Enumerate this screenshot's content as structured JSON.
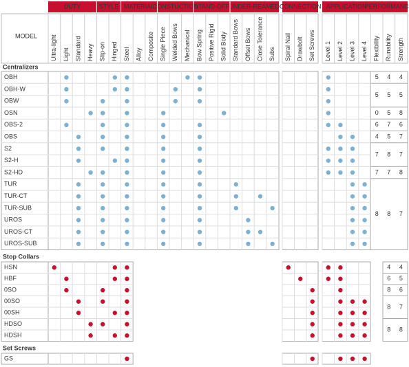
{
  "header": {
    "model_label": "MODEL"
  },
  "column_blocks": [
    {
      "groups": [
        {
          "name": "DUTY",
          "columns": [
            "Ultra-light",
            "Light",
            "Standard",
            "Heavy"
          ]
        },
        {
          "name": "STYLE",
          "columns": [
            "Slip-on",
            "Hinged"
          ]
        },
        {
          "name": "MATERIAL",
          "columns": [
            "Steel",
            "Alloy",
            "Composite"
          ]
        },
        {
          "name": "CONSTUCTION",
          "columns": [
            "Single Piece",
            "Welded Bows",
            "Mechanical"
          ]
        },
        {
          "name": "STAND-OFF",
          "columns": [
            "Bow Spring",
            "Positive Rigid",
            "Solid Body"
          ]
        },
        {
          "name": "UNDER-REAMED",
          "columns": [
            "Standard Bows",
            "Offset Bows",
            "Close Tolerance",
            "Subs"
          ]
        }
      ]
    },
    {
      "groups": [
        {
          "name": "CONNECTION",
          "columns": [
            "Spiral Nail",
            "Drawbolt",
            "Set Screws"
          ]
        }
      ]
    },
    {
      "groups": [
        {
          "name": "APPLICATION",
          "columns": [
            "Level 1",
            "Level 2",
            "Level 3",
            "Level 4"
          ]
        },
        {
          "name": "PERFORMANCE",
          "columns": [
            "Flexibility",
            "Runability",
            "Strength"
          ]
        }
      ]
    }
  ],
  "sections": [
    {
      "title": "Centralizers",
      "dot_color": "#7fb0d0",
      "rows": [
        {
          "model": "OBH",
          "features": [
            "Light",
            "Hinged",
            "Steel",
            "Mechanical",
            "Bow Spring",
            "Level 1"
          ]
        },
        {
          "model": "OBH-W",
          "features": [
            "Light",
            "Hinged",
            "Steel",
            "Welded Bows",
            "Bow Spring",
            "Level 1"
          ]
        },
        {
          "model": "OBW",
          "features": [
            "Light",
            "Slip-on",
            "Steel",
            "Welded Bows",
            "Bow Spring",
            "Level 1"
          ]
        },
        {
          "model": "OSN",
          "features": [
            "Heavy",
            "Slip-on",
            "Steel",
            "Single Piece",
            "Solid Body",
            "Level 1"
          ]
        },
        {
          "model": "OBS-2",
          "features": [
            "Light",
            "Slip-on",
            "Steel",
            "Single Piece",
            "Bow Spring",
            "Level 1",
            "Level 2"
          ]
        },
        {
          "model": "OBS",
          "features": [
            "Standard",
            "Slip-on",
            "Steel",
            "Single Piece",
            "Bow Spring",
            "Level 2",
            "Level 3"
          ]
        },
        {
          "model": "S2",
          "features": [
            "Standard",
            "Slip-on",
            "Steel",
            "Single Piece",
            "Bow Spring",
            "Level 1",
            "Level 2",
            "Level 3"
          ]
        },
        {
          "model": "S2-H",
          "features": [
            "Standard",
            "Hinged",
            "Steel",
            "Single Piece",
            "Bow Spring",
            "Level 1",
            "Level 2",
            "Level 3"
          ]
        },
        {
          "model": "S2-HD",
          "features": [
            "Heavy",
            "Slip-on",
            "Steel",
            "Single Piece",
            "Bow Spring",
            "Level 1",
            "Level 2",
            "Level 3"
          ]
        },
        {
          "model": "TUR",
          "features": [
            "Standard",
            "Slip-on",
            "Steel",
            "Single Piece",
            "Bow Spring",
            "Standard Bows",
            "Level 3",
            "Level 4"
          ]
        },
        {
          "model": "TUR-CT",
          "features": [
            "Standard",
            "Slip-on",
            "Steel",
            "Single Piece",
            "Bow Spring",
            "Standard Bows",
            "Close Tolerance",
            "Level 3",
            "Level 4"
          ]
        },
        {
          "model": "TUR-SUB",
          "features": [
            "Standard",
            "Slip-on",
            "Steel",
            "Single Piece",
            "Bow Spring",
            "Standard Bows",
            "Subs",
            "Level 3",
            "Level 4"
          ]
        },
        {
          "model": "UROS",
          "features": [
            "Standard",
            "Slip-on",
            "Steel",
            "Single Piece",
            "Bow Spring",
            "Offset Bows",
            "Level 3",
            "Level 4"
          ]
        },
        {
          "model": "UROS-CT",
          "features": [
            "Standard",
            "Slip-on",
            "Steel",
            "Single Piece",
            "Bow Spring",
            "Offset Bows",
            "Close Tolerance",
            "Level 3",
            "Level 4"
          ]
        },
        {
          "model": "UROS-SUB",
          "features": [
            "Standard",
            "Slip-on",
            "Steel",
            "Single Piece",
            "Bow Spring",
            "Offset Bows",
            "Subs",
            "Level 3",
            "Level 4"
          ]
        }
      ],
      "performance": [
        {
          "models": [
            "OBH"
          ],
          "values": [
            5,
            4,
            4
          ]
        },
        {
          "models": [
            "OBH-W",
            "OBW"
          ],
          "values": [
            5,
            5,
            5
          ]
        },
        {
          "models": [
            "OSN"
          ],
          "values": [
            0,
            5,
            8
          ]
        },
        {
          "models": [
            "OBS-2"
          ],
          "values": [
            6,
            7,
            6
          ]
        },
        {
          "models": [
            "OBS"
          ],
          "values": [
            4,
            5,
            7
          ]
        },
        {
          "models": [
            "S2",
            "S2-H"
          ],
          "values": [
            7,
            8,
            7
          ]
        },
        {
          "models": [
            "S2-HD"
          ],
          "values": [
            7,
            7,
            8
          ]
        },
        {
          "models": [
            "TUR",
            "TUR-CT",
            "TUR-SUB",
            "UROS",
            "UROS-CT",
            "UROS-SUB"
          ],
          "values": [
            8,
            8,
            7
          ]
        }
      ]
    },
    {
      "title": "Stop Collars",
      "dot_color": "#c8102e",
      "rows": [
        {
          "model": "HSN",
          "features": [
            "Ultra-light",
            "Hinged",
            "Steel",
            "Spiral Nail",
            "Level 1",
            "Level 2"
          ]
        },
        {
          "model": "HBF",
          "features": [
            "Light",
            "Hinged",
            "Steel",
            "Drawbolt",
            "Level 1",
            "Level 2"
          ]
        },
        {
          "model": "0SO",
          "features": [
            "Light",
            "Slip-on",
            "Steel",
            "Set Screws",
            "Level 2"
          ]
        },
        {
          "model": "00SO",
          "features": [
            "Standard",
            "Slip-on",
            "Steel",
            "Set Screws",
            "Level 2",
            "Level 3",
            "Level 4"
          ]
        },
        {
          "model": "00SH",
          "features": [
            "Standard",
            "Hinged",
            "Steel",
            "Set Screws",
            "Level 2",
            "Level 3",
            "Level 4"
          ]
        },
        {
          "model": "HDSO",
          "features": [
            "Heavy",
            "Slip-on",
            "Steel",
            "Set Screws",
            "Level 2",
            "Level 3",
            "Level 4"
          ]
        },
        {
          "model": "HDSH",
          "features": [
            "Heavy",
            "Hinged",
            "Steel",
            "Set Screws",
            "Level 2",
            "Level 3",
            "Level 4"
          ]
        }
      ],
      "performance": [
        {
          "models": [
            "HSN"
          ],
          "values": [
            null,
            4,
            4
          ]
        },
        {
          "models": [
            "HBF"
          ],
          "values": [
            null,
            6,
            5
          ]
        },
        {
          "models": [
            "0SO"
          ],
          "values": [
            null,
            8,
            6
          ]
        },
        {
          "models": [
            "00SO",
            "00SH"
          ],
          "values": [
            null,
            8,
            7
          ]
        },
        {
          "models": [
            "HDSO",
            "HDSH"
          ],
          "values": [
            null,
            8,
            8
          ]
        }
      ]
    },
    {
      "title": "Set Screws",
      "dot_color": "#c8102e",
      "rows": [
        {
          "model": "GS",
          "features": [
            "Steel",
            "Set Screws",
            "Level 2",
            "Level 3",
            "Level 4"
          ]
        }
      ],
      "performance": []
    }
  ]
}
